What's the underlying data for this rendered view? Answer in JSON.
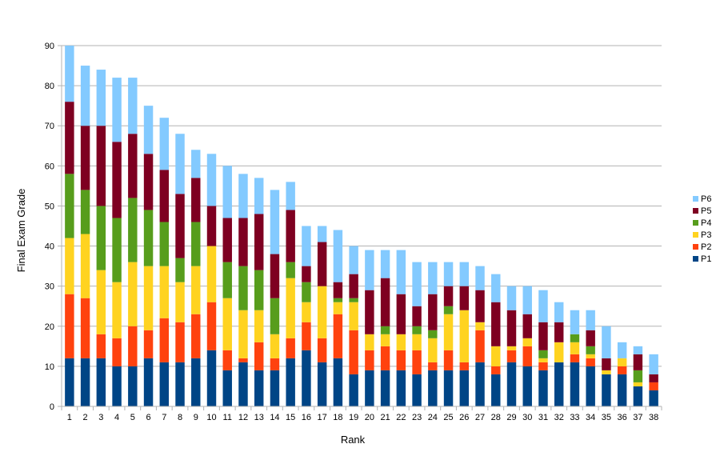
{
  "chart_data": {
    "type": "bar",
    "stacked": true,
    "title": "",
    "xlabel": "Rank",
    "ylabel": "Final Exam Grade",
    "ylim": [
      0,
      90
    ],
    "yticks": [
      0,
      10,
      20,
      30,
      40,
      50,
      60,
      70,
      80,
      90
    ],
    "grid": true,
    "legend_position": "right",
    "categories": [
      "1",
      "2",
      "3",
      "4",
      "5",
      "6",
      "7",
      "8",
      "9",
      "10",
      "11",
      "12",
      "13",
      "14",
      "15",
      "16",
      "17",
      "18",
      "19",
      "20",
      "21",
      "22",
      "23",
      "24",
      "25",
      "26",
      "27",
      "28",
      "29",
      "30",
      "31",
      "32",
      "33",
      "34",
      "35",
      "36",
      "37",
      "38"
    ],
    "series": [
      {
        "name": "P1",
        "color": "#004586",
        "values": [
          12,
          12,
          12,
          10,
          10,
          12,
          11,
          11,
          12,
          14,
          9,
          11,
          9,
          9,
          12,
          14,
          11,
          12,
          8,
          9,
          9,
          9,
          8,
          9,
          9,
          9,
          11,
          8,
          11,
          10,
          9,
          11,
          11,
          10,
          8,
          8,
          5,
          4
        ]
      },
      {
        "name": "P2",
        "color": "#ff420e",
        "values": [
          16,
          15,
          6,
          7,
          10,
          7,
          11,
          10,
          11,
          12,
          5,
          1,
          7,
          3,
          5,
          7,
          6,
          11,
          11,
          5,
          6,
          5,
          6,
          2,
          5,
          2,
          8,
          2,
          3,
          5,
          2,
          0,
          2,
          2,
          0,
          2,
          0,
          2
        ]
      },
      {
        "name": "P3",
        "color": "#ffd320",
        "values": [
          14,
          16,
          16,
          14,
          16,
          16,
          13,
          10,
          12,
          14,
          13,
          12,
          8,
          6,
          15,
          5,
          13,
          3,
          7,
          4,
          3,
          4,
          4,
          6,
          9,
          13,
          2,
          5,
          1,
          2,
          1,
          5,
          3,
          1,
          1,
          2,
          1,
          0
        ]
      },
      {
        "name": "P4",
        "color": "#579d1c",
        "values": [
          16,
          11,
          16,
          16,
          16,
          14,
          11,
          6,
          11,
          0,
          9,
          11,
          10,
          9,
          4,
          5,
          0,
          1,
          1,
          0,
          2,
          0,
          2,
          2,
          2,
          0,
          0,
          0,
          0,
          0,
          2,
          0,
          2,
          2,
          0,
          0,
          3,
          0
        ]
      },
      {
        "name": "P5",
        "color": "#7e0021",
        "values": [
          18,
          16,
          20,
          19,
          16,
          14,
          13,
          16,
          11,
          10,
          11,
          12,
          14,
          11,
          13,
          4,
          11,
          4,
          6,
          11,
          12,
          10,
          5,
          9,
          5,
          6,
          8,
          11,
          9,
          6,
          7,
          5,
          0,
          4,
          3,
          0,
          4,
          2
        ]
      },
      {
        "name": "P6",
        "color": "#83caff",
        "values": [
          14,
          15,
          14,
          16,
          14,
          12,
          13,
          15,
          7,
          13,
          13,
          11,
          9,
          16,
          7,
          10,
          4,
          13,
          7,
          10,
          7,
          11,
          11,
          8,
          6,
          6,
          6,
          7,
          6,
          7,
          8,
          5,
          6,
          5,
          8,
          4,
          2,
          5
        ]
      }
    ]
  }
}
